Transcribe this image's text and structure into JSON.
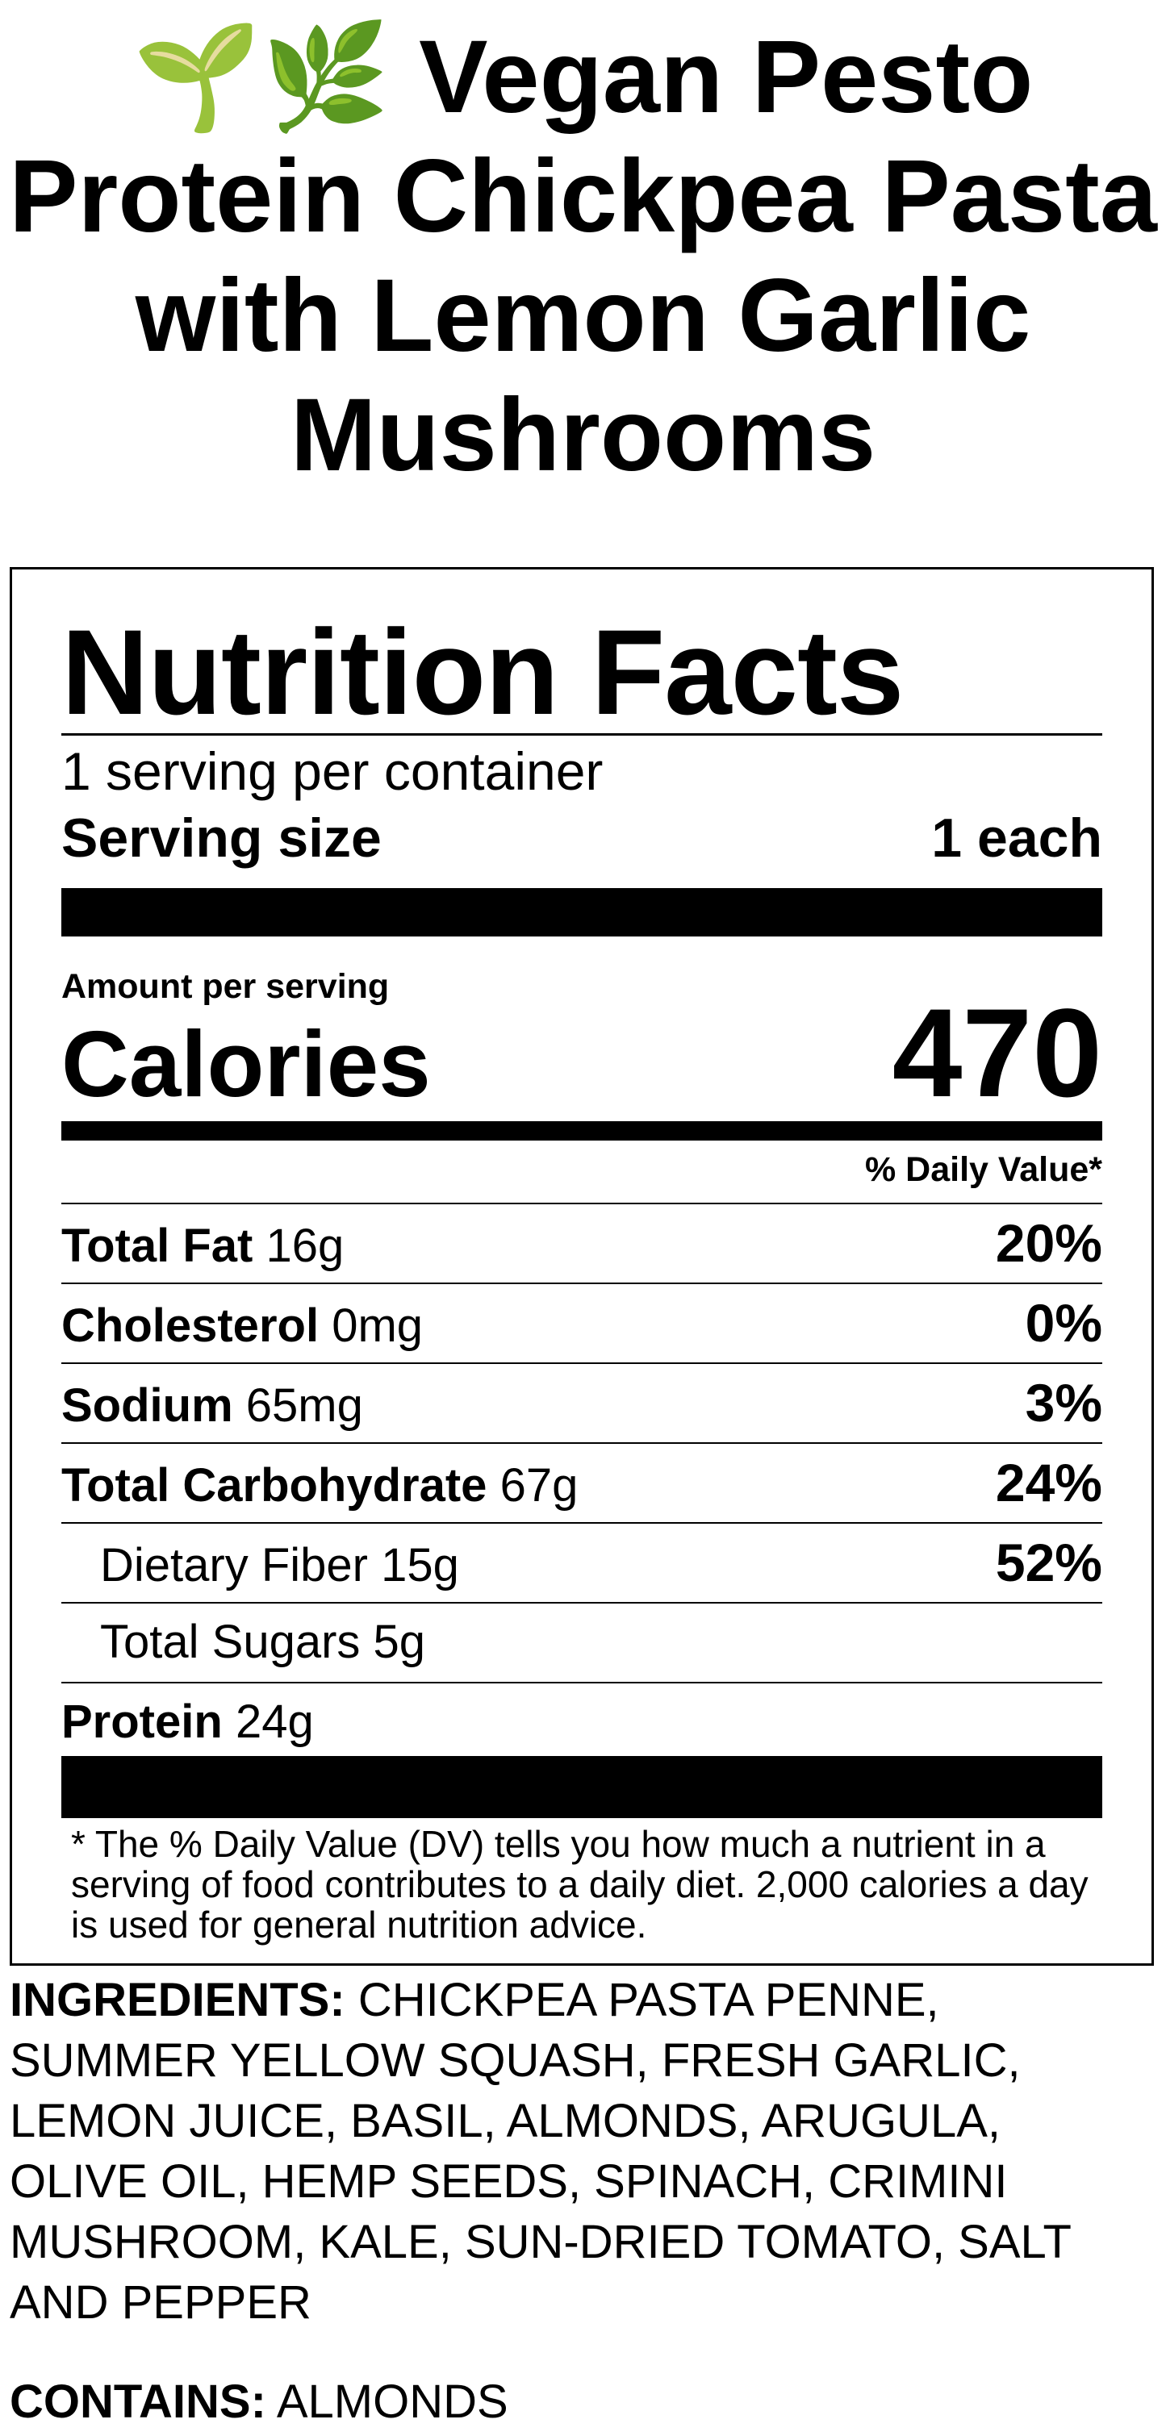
{
  "title": "🌱🌿 Vegan Pesto Protein Chickpea Pasta with Lemon Garlic Mushrooms",
  "label": {
    "heading": "Nutrition Facts",
    "servings_per_container": "1 serving per container",
    "serving_size_label": "Serving size",
    "serving_size_value": "1 each",
    "amount_per_serving": "Amount per serving",
    "calories_label": "Calories",
    "calories_value": "470",
    "daily_value_header": "% Daily Value*",
    "nutrients": [
      {
        "name": "Total Fat",
        "amount": "16g",
        "dv": "20%",
        "indent": false
      },
      {
        "name": "Cholesterol",
        "amount": "0mg",
        "dv": "0%",
        "indent": false
      },
      {
        "name": "Sodium",
        "amount": "65mg",
        "dv": "3%",
        "indent": false
      },
      {
        "name": "Total Carbohydrate",
        "amount": "67g",
        "dv": "24%",
        "indent": false
      },
      {
        "name": "Dietary Fiber",
        "amount": "15g",
        "dv": "52%",
        "indent": true
      },
      {
        "name": "Total Sugars",
        "amount": "5g",
        "dv": "",
        "indent": true
      },
      {
        "name": "Protein",
        "amount": "24g",
        "dv": "",
        "indent": false
      }
    ],
    "footnote": "* The % Daily Value (DV) tells you how much a nutrient in a serving of food contributes to a daily diet. 2,000 calories a day is used for general nutrition advice."
  },
  "ingredients": {
    "label": "INGREDIENTS:",
    "text": "CHICKPEA PASTA PENNE, SUMMER YELLOW SQUASH, FRESH GARLIC, LEMON JUICE, BASIL, ALMONDS, ARUGULA, OLIVE OIL, HEMP SEEDS, SPINACH, CRIMINI MUSHROOM, KALE, SUN-DRIED TOMATO, SALT AND PEPPER"
  },
  "contains": {
    "label": "CONTAINS:",
    "text": "ALMONDS"
  }
}
